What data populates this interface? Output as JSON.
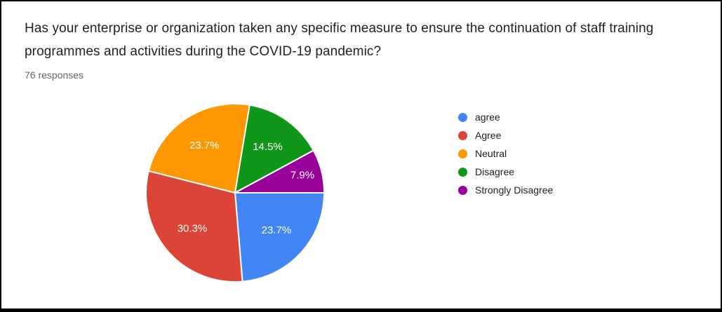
{
  "header": {
    "title": "Has your enterprise or organization taken any specific measure to ensure the continuation of staff training programmes and activities during the COVID-19 pandemic?",
    "responses": "76 responses"
  },
  "chart_data": {
    "type": "pie",
    "title": "Has your enterprise or organization taken any specific measure to ensure the continuation of staff training programmes and activities during the COVID-19 pandemic?",
    "subtitle": "76 responses",
    "labels": [
      "agree",
      "Agree",
      "Neutral",
      "Disagree",
      "Strongly Disagree"
    ],
    "values_percent": [
      23.7,
      30.3,
      23.7,
      14.5,
      7.9
    ],
    "percent_labels": [
      "23.7%",
      "30.3%",
      "23.7%",
      "14.5%",
      "7.9%"
    ],
    "colors": [
      "#4285f4",
      "#db4437",
      "#ff9800",
      "#109618",
      "#990099"
    ],
    "slice_label_color": "#ffffff",
    "start_angle_deg": 90,
    "direction": "clockwise",
    "legend_position": "right"
  },
  "frame": {
    "border_color": "#000000",
    "background": "#ffffff"
  }
}
